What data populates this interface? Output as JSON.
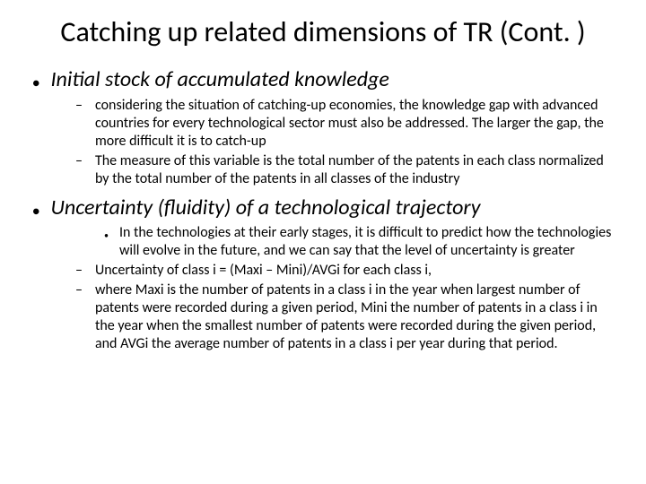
{
  "title": "Catching up related dimensions of TR (Cont. )",
  "sections": [
    {
      "heading": "Initial stock of accumulated knowledge",
      "subpoints_dash": [
        "considering the situation of catching-up economies, the knowledge gap with advanced countries for every technological sector must also be addressed. The larger the gap, the more difficult it is to catch-up",
        "The measure of this variable is the total number of the  patents in each class normalized by the total number of the patents in all classes of the industry"
      ],
      "subpoints_dot": []
    },
    {
      "heading": "Uncertainty (fluidity) of a technological trajectory",
      "subpoints_dot": [
        "In the technologies at their early stages, it is difficult to predict how the technologies will evolve in the future, and we can say that the level of uncertainty is greater"
      ],
      "subpoints_dash": [
        "Uncertainty of class i = (Maxi – Mini)/AVGi for each class i,",
        "where Maxi is the number of patents in a class i in the year when largest number of patents were recorded during a given period, Mini the number of patents in a class i in the year when the smallest number of patents were recorded during the given period, and AVGi the average number of patents in a class i per year during that period."
      ]
    }
  ]
}
